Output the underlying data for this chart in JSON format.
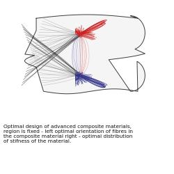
{
  "bg_color": "#ffffff",
  "fig_width": 2.5,
  "fig_height": 2.5,
  "dpi": 100,
  "caption": "Optimal design of advanced composite materials,\nregion is fixed - left optimal orientation of fibres in\nthe composite material right - optimal distribution\nof stifness of the material.",
  "caption_fontsize": 5.3,
  "red_color": "#cc2222",
  "blue_color": "#333388",
  "dark_color": "#111111",
  "mid_color": "#666666",
  "light_color": "#aaaaaa"
}
